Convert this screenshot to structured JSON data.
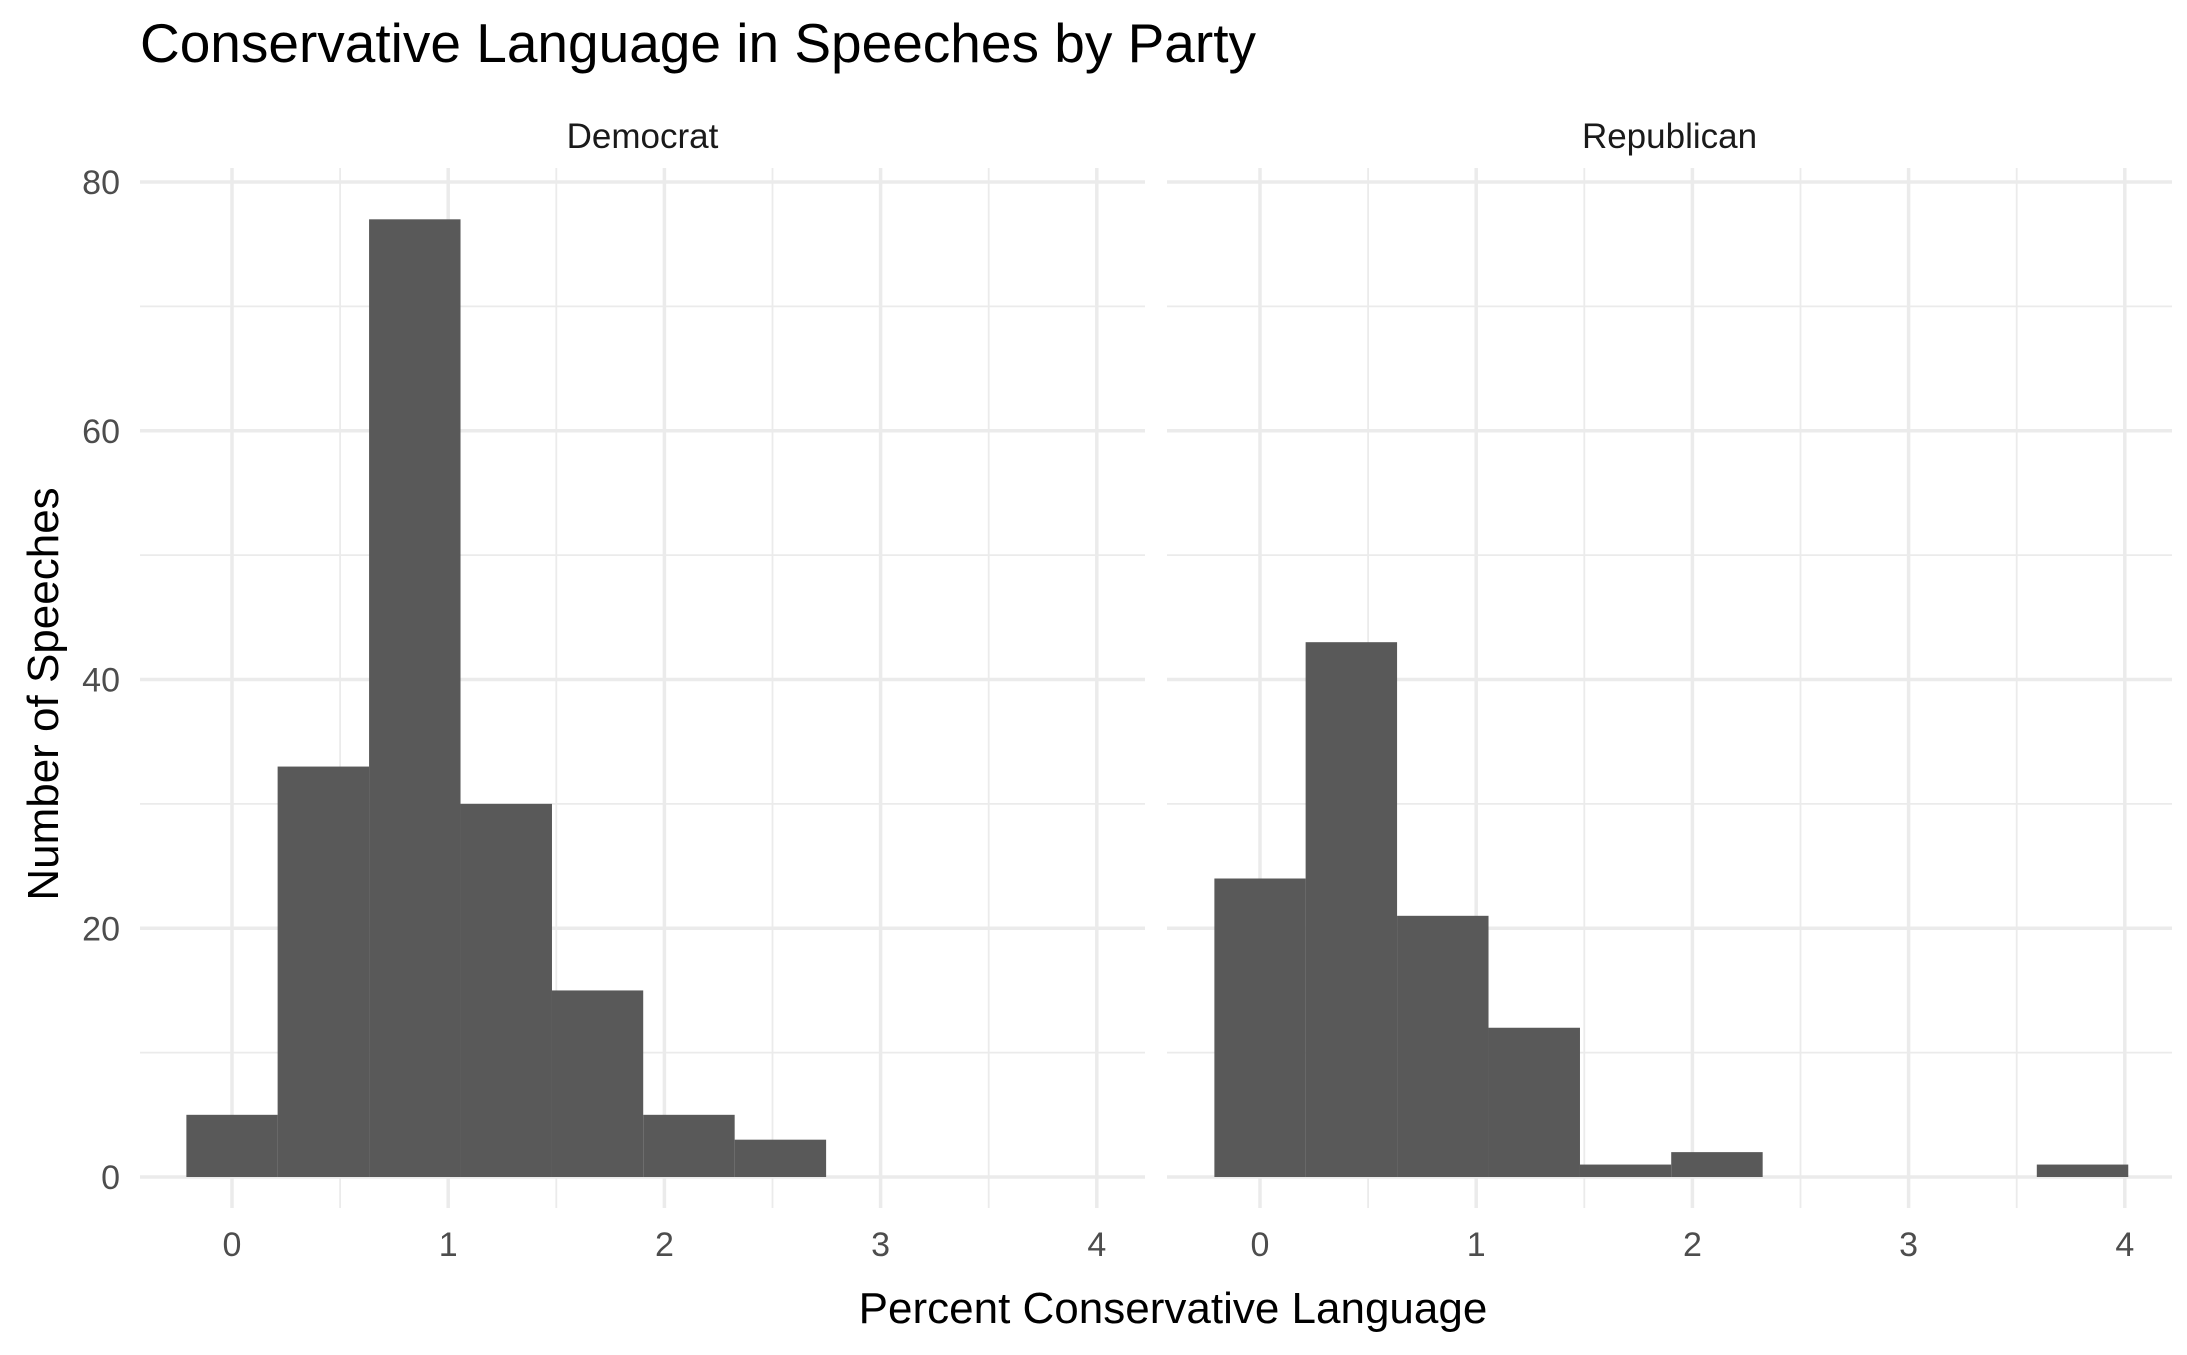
{
  "chart_data": {
    "type": "bar",
    "title": "Conservative Language in Speeches by Party",
    "xlabel": "Percent Conservative Language",
    "ylabel": "Number of Speeches",
    "grid": true,
    "bin_width": 0.4227,
    "x_ticks": [
      0,
      1,
      2,
      3,
      4
    ],
    "y_ticks": [
      0,
      20,
      40,
      60,
      80
    ],
    "xlim": [
      -0.21,
      4.21
    ],
    "ylim": [
      0,
      82
    ],
    "bar_color": "#595959",
    "panels": [
      {
        "name": "Democrat",
        "bins": [
          {
            "x_start": -0.211,
            "x_end": 0.211,
            "count": 5
          },
          {
            "x_start": 0.211,
            "x_end": 0.634,
            "count": 33
          },
          {
            "x_start": 0.634,
            "x_end": 1.057,
            "count": 77
          },
          {
            "x_start": 1.057,
            "x_end": 1.48,
            "count": 30
          },
          {
            "x_start": 1.48,
            "x_end": 1.902,
            "count": 15
          },
          {
            "x_start": 1.902,
            "x_end": 2.325,
            "count": 5
          },
          {
            "x_start": 2.325,
            "x_end": 2.748,
            "count": 3
          }
        ]
      },
      {
        "name": "Republican",
        "bins": [
          {
            "x_start": -0.211,
            "x_end": 0.211,
            "count": 24
          },
          {
            "x_start": 0.211,
            "x_end": 0.634,
            "count": 43
          },
          {
            "x_start": 0.634,
            "x_end": 1.057,
            "count": 21
          },
          {
            "x_start": 1.057,
            "x_end": 1.48,
            "count": 12
          },
          {
            "x_start": 1.48,
            "x_end": 1.902,
            "count": 1
          },
          {
            "x_start": 1.902,
            "x_end": 2.325,
            "count": 2
          },
          {
            "x_start": 2.325,
            "x_end": 2.748,
            "count": 0
          },
          {
            "x_start": 2.748,
            "x_end": 3.17,
            "count": 0
          },
          {
            "x_start": 3.17,
            "x_end": 3.593,
            "count": 0
          },
          {
            "x_start": 3.593,
            "x_end": 4.016,
            "count": 1
          }
        ]
      }
    ]
  }
}
